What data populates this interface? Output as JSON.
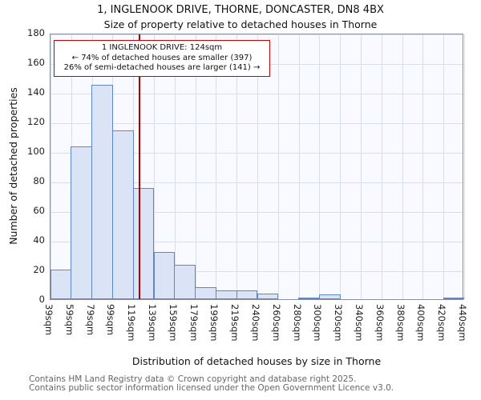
{
  "annotation": {
    "lines": [
      "1 INGLENOOK DRIVE: 124sqm",
      "← 74% of detached houses are smaller (397)",
      "26% of semi-detached houses are larger (141) →"
    ],
    "border_color": "#cc0000"
  },
  "footer": {
    "lines": [
      "Contains HM Land Registry data © Crown copyright and database right 2025.",
      "Contains public sector information licensed under the Open Government Licence v3.0."
    ]
  },
  "chart_data": {
    "type": "bar",
    "title": "1, INGLENOOK DRIVE, THORNE, DONCASTER, DN8 4BX",
    "subtitle": "Size of property relative to detached houses in Thorne",
    "xlabel": "Distribution of detached houses by size in Thorne",
    "ylabel": "Number of detached properties",
    "bin_labels": [
      "39sqm",
      "59sqm",
      "79sqm",
      "99sqm",
      "119sqm",
      "139sqm",
      "159sqm",
      "179sqm",
      "199sqm",
      "219sqm",
      "240sqm",
      "260sqm",
      "280sqm",
      "300sqm",
      "320sqm",
      "340sqm",
      "360sqm",
      "380sqm",
      "400sqm",
      "420sqm",
      "440sqm"
    ],
    "values": [
      20,
      103,
      145,
      114,
      75,
      32,
      23,
      8,
      6,
      6,
      4,
      0,
      1,
      3,
      0,
      0,
      0,
      0,
      0,
      1
    ],
    "ylim": [
      0,
      180
    ],
    "ytick_step": 20,
    "grid": true,
    "legend": "none",
    "marker": {
      "value_sqm": 124,
      "color": "#b30000"
    },
    "bar_fill": "#dae4f6",
    "bar_stroke": "#5f87c5"
  }
}
